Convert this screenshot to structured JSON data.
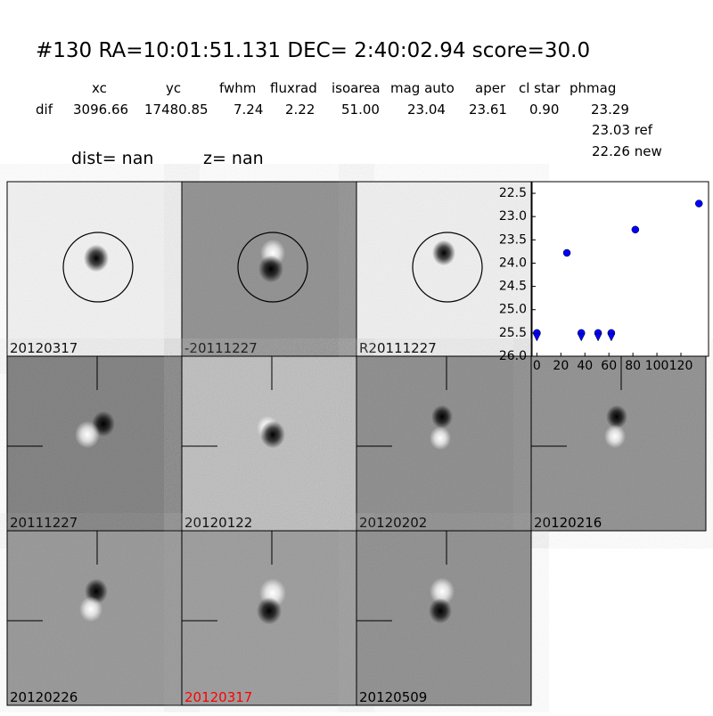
{
  "header": {
    "title": "#130   RA=10:01:51.131 DEC= 2:40:02.94       score=30.0"
  },
  "table": {
    "columns": [
      "xc",
      "yc",
      "fwhm",
      "fluxrad",
      "isoarea",
      "mag auto",
      "aper",
      "cl star",
      "phmag"
    ],
    "rows": [
      [
        "dif",
        "3096.66",
        "17480.85",
        "7.24",
        "2.22",
        "51.00",
        "23.04",
        "23.61",
        "0.90",
        "23.29"
      ]
    ],
    "extra": [
      "23.03 ref",
      "22.26 new"
    ]
  },
  "labels": {
    "dist": "dist=   nan",
    "z": "z=   nan"
  },
  "panels": [
    {
      "label": "20120317"
    },
    {
      "label": "-20111227"
    },
    {
      "label": "R20111227"
    },
    {
      "label": "20111227"
    },
    {
      "label": "20120122"
    },
    {
      "label": "20120202"
    },
    {
      "label": "20120216"
    },
    {
      "label": "20120226"
    },
    {
      "label": "20120317"
    },
    {
      "label": "20120509"
    }
  ],
  "chart_data": {
    "type": "scatter",
    "xlim": [
      -4,
      143
    ],
    "xticks": [
      0,
      20,
      40,
      60,
      80,
      100,
      120
    ],
    "ylim": [
      26.0,
      22.25
    ],
    "yticks": [
      22.5,
      {
        "value": 23.0,
        "label": "23.0"
      },
      23.5,
      {
        "value": 24.0,
        "label": "24.0"
      },
      24.5,
      {
        "value": 25.0,
        "label": "25.0"
      },
      25.5,
      {
        "value": 26.0,
        "label": "26.0"
      }
    ],
    "series": [
      {
        "marker": "circle",
        "color": "#0000ff",
        "x": [
          25,
          82,
          135
        ],
        "values": [
          23.78,
          23.28,
          22.72
        ]
      },
      {
        "marker": "upper-limit",
        "color": "#0000ff",
        "x": [
          0,
          37,
          51,
          62
        ],
        "values": [
          25.5,
          25.5,
          25.5,
          25.5
        ]
      }
    ]
  }
}
